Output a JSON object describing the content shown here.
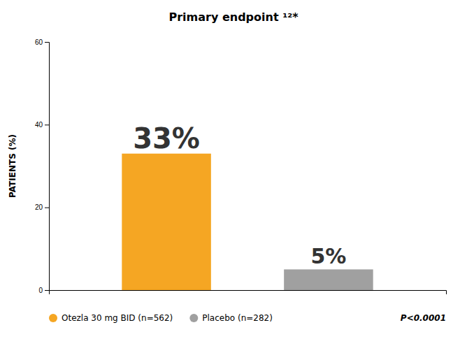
{
  "chart_data": {
    "type": "bar",
    "title": "Primary endpoint ¹²*",
    "categories": [
      "Otezla 30 mg BID (n=562)",
      "Placebo (n=282)"
    ],
    "values": [
      33,
      5
    ],
    "value_labels": [
      "33%",
      "5%"
    ],
    "colors": [
      "#f5a623",
      "#a0a0a0"
    ],
    "ylabel": "PATIENTS (%)",
    "ylim": [
      0,
      60
    ],
    "yticks": [
      0,
      20,
      40,
      60
    ],
    "grid": false,
    "data_labels": true,
    "tick_labels": "y",
    "legend": "lower left",
    "annotations": [
      "P<0.0001"
    ]
  }
}
